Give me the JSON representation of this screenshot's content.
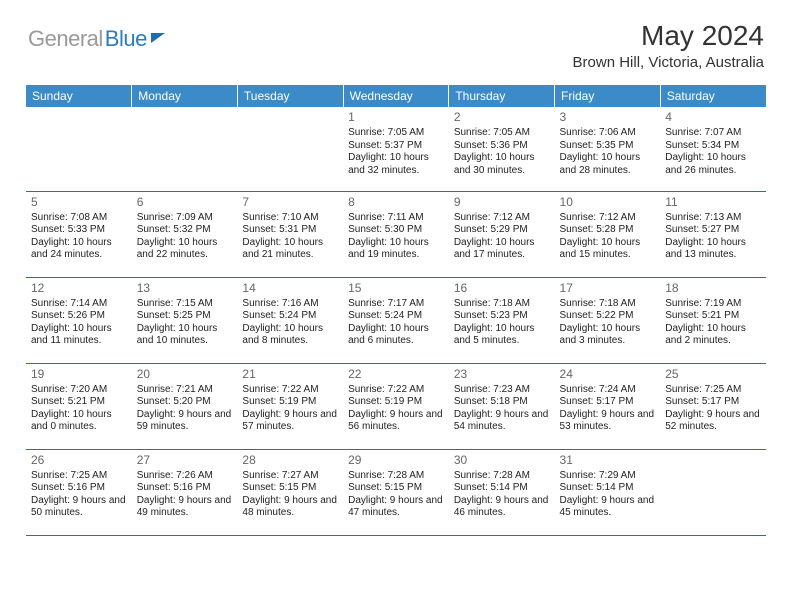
{
  "brand": {
    "gray": "General",
    "blue": "Blue"
  },
  "title": "May 2024",
  "location": "Brown Hill, Victoria, Australia",
  "colors": {
    "header_bg": "#3b8bc9",
    "header_text": "#ffffff",
    "cell_border": "#2b6da8",
    "logo_gray": "#9a9a9a",
    "logo_blue": "#2b7bbd"
  },
  "weekdays": [
    "Sunday",
    "Monday",
    "Tuesday",
    "Wednesday",
    "Thursday",
    "Friday",
    "Saturday"
  ],
  "weeks": [
    [
      null,
      null,
      null,
      {
        "n": "1",
        "sr": "7:05 AM",
        "ss": "5:37 PM",
        "dh": "10",
        "dm": "32"
      },
      {
        "n": "2",
        "sr": "7:05 AM",
        "ss": "5:36 PM",
        "dh": "10",
        "dm": "30"
      },
      {
        "n": "3",
        "sr": "7:06 AM",
        "ss": "5:35 PM",
        "dh": "10",
        "dm": "28"
      },
      {
        "n": "4",
        "sr": "7:07 AM",
        "ss": "5:34 PM",
        "dh": "10",
        "dm": "26"
      }
    ],
    [
      {
        "n": "5",
        "sr": "7:08 AM",
        "ss": "5:33 PM",
        "dh": "10",
        "dm": "24"
      },
      {
        "n": "6",
        "sr": "7:09 AM",
        "ss": "5:32 PM",
        "dh": "10",
        "dm": "22"
      },
      {
        "n": "7",
        "sr": "7:10 AM",
        "ss": "5:31 PM",
        "dh": "10",
        "dm": "21"
      },
      {
        "n": "8",
        "sr": "7:11 AM",
        "ss": "5:30 PM",
        "dh": "10",
        "dm": "19"
      },
      {
        "n": "9",
        "sr": "7:12 AM",
        "ss": "5:29 PM",
        "dh": "10",
        "dm": "17"
      },
      {
        "n": "10",
        "sr": "7:12 AM",
        "ss": "5:28 PM",
        "dh": "10",
        "dm": "15"
      },
      {
        "n": "11",
        "sr": "7:13 AM",
        "ss": "5:27 PM",
        "dh": "10",
        "dm": "13"
      }
    ],
    [
      {
        "n": "12",
        "sr": "7:14 AM",
        "ss": "5:26 PM",
        "dh": "10",
        "dm": "11"
      },
      {
        "n": "13",
        "sr": "7:15 AM",
        "ss": "5:25 PM",
        "dh": "10",
        "dm": "10"
      },
      {
        "n": "14",
        "sr": "7:16 AM",
        "ss": "5:24 PM",
        "dh": "10",
        "dm": "8"
      },
      {
        "n": "15",
        "sr": "7:17 AM",
        "ss": "5:24 PM",
        "dh": "10",
        "dm": "6"
      },
      {
        "n": "16",
        "sr": "7:18 AM",
        "ss": "5:23 PM",
        "dh": "10",
        "dm": "5"
      },
      {
        "n": "17",
        "sr": "7:18 AM",
        "ss": "5:22 PM",
        "dh": "10",
        "dm": "3"
      },
      {
        "n": "18",
        "sr": "7:19 AM",
        "ss": "5:21 PM",
        "dh": "10",
        "dm": "2"
      }
    ],
    [
      {
        "n": "19",
        "sr": "7:20 AM",
        "ss": "5:21 PM",
        "dh": "10",
        "dm": "0"
      },
      {
        "n": "20",
        "sr": "7:21 AM",
        "ss": "5:20 PM",
        "dh": "9",
        "dm": "59"
      },
      {
        "n": "21",
        "sr": "7:22 AM",
        "ss": "5:19 PM",
        "dh": "9",
        "dm": "57"
      },
      {
        "n": "22",
        "sr": "7:22 AM",
        "ss": "5:19 PM",
        "dh": "9",
        "dm": "56"
      },
      {
        "n": "23",
        "sr": "7:23 AM",
        "ss": "5:18 PM",
        "dh": "9",
        "dm": "54"
      },
      {
        "n": "24",
        "sr": "7:24 AM",
        "ss": "5:17 PM",
        "dh": "9",
        "dm": "53"
      },
      {
        "n": "25",
        "sr": "7:25 AM",
        "ss": "5:17 PM",
        "dh": "9",
        "dm": "52"
      }
    ],
    [
      {
        "n": "26",
        "sr": "7:25 AM",
        "ss": "5:16 PM",
        "dh": "9",
        "dm": "50"
      },
      {
        "n": "27",
        "sr": "7:26 AM",
        "ss": "5:16 PM",
        "dh": "9",
        "dm": "49"
      },
      {
        "n": "28",
        "sr": "7:27 AM",
        "ss": "5:15 PM",
        "dh": "9",
        "dm": "48"
      },
      {
        "n": "29",
        "sr": "7:28 AM",
        "ss": "5:15 PM",
        "dh": "9",
        "dm": "47"
      },
      {
        "n": "30",
        "sr": "7:28 AM",
        "ss": "5:14 PM",
        "dh": "9",
        "dm": "46"
      },
      {
        "n": "31",
        "sr": "7:29 AM",
        "ss": "5:14 PM",
        "dh": "9",
        "dm": "45"
      },
      null
    ]
  ]
}
